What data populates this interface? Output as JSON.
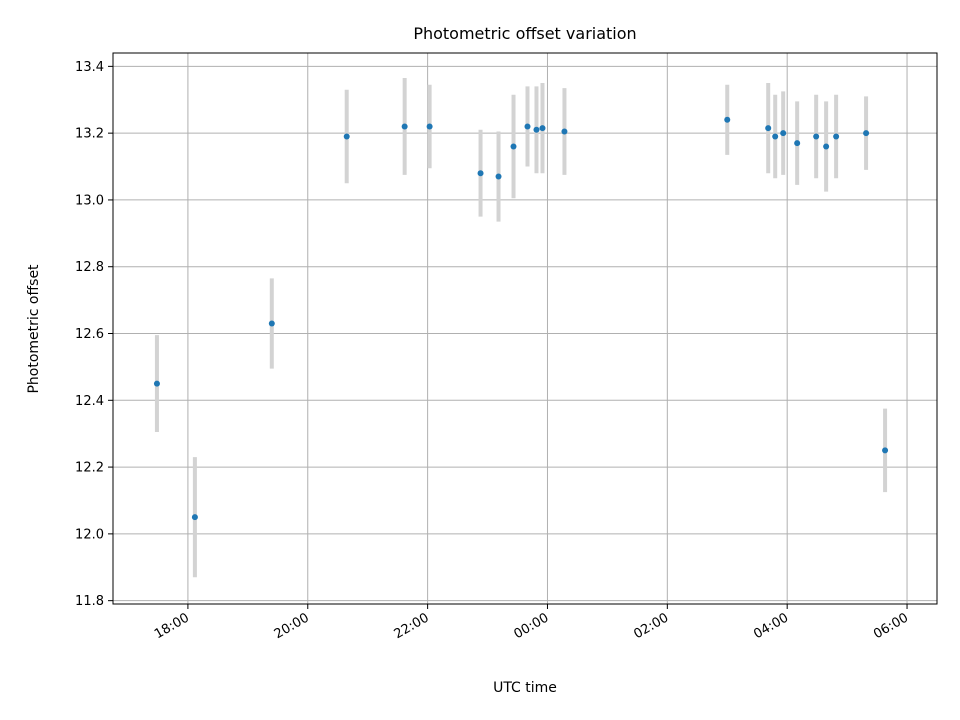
{
  "chart_data": {
    "type": "scatter",
    "title": "Photometric offset variation",
    "xlabel": "UTC time",
    "ylabel": "Photometric offset",
    "xlim": [
      "2000-01-01T16:45",
      "2000-01-02T06:30"
    ],
    "ylim": [
      11.79,
      13.44
    ],
    "x_ticks": [
      "18:00",
      "20:00",
      "22:00",
      "00:00",
      "02:00",
      "04:00",
      "06:00"
    ],
    "y_ticks": [
      "11.8",
      "12.0",
      "12.2",
      "12.4",
      "12.6",
      "12.8",
      "13.0",
      "13.2",
      "13.4"
    ],
    "grid": true,
    "colors": {
      "point": "#1f77b4",
      "errorbar": "#d3d3d3"
    },
    "series": [
      {
        "x": [
          "2000-01-01T17:29",
          "2000-01-01T18:07",
          "2000-01-01T19:24",
          "2000-01-01T20:39",
          "2000-01-01T21:37",
          "2000-01-01T22:02",
          "2000-01-01T22:53",
          "2000-01-01T23:11",
          "2000-01-01T23:26",
          "2000-01-01T23:40",
          "2000-01-01T23:49",
          "2000-01-01T23:55",
          "2000-01-02T00:17",
          "2000-01-02T03:00",
          "2000-01-02T03:41",
          "2000-01-02T03:48",
          "2000-01-02T03:56",
          "2000-01-02T04:10",
          "2000-01-02T04:29",
          "2000-01-02T04:39",
          "2000-01-02T04:49",
          "2000-01-02T05:19",
          "2000-01-02T05:38"
        ],
        "values": [
          12.45,
          12.05,
          12.63,
          13.19,
          13.22,
          13.22,
          13.08,
          13.07,
          13.16,
          13.22,
          13.21,
          13.215,
          13.205,
          13.24,
          13.215,
          13.19,
          13.2,
          13.17,
          13.19,
          13.16,
          13.19,
          13.2,
          12.25
        ],
        "errors": [
          0.145,
          0.18,
          0.135,
          0.14,
          0.145,
          0.125,
          0.13,
          0.135,
          0.155,
          0.12,
          0.13,
          0.135,
          0.13,
          0.105,
          0.135,
          0.125,
          0.125,
          0.125,
          0.125,
          0.135,
          0.125,
          0.11,
          0.125
        ]
      }
    ]
  }
}
